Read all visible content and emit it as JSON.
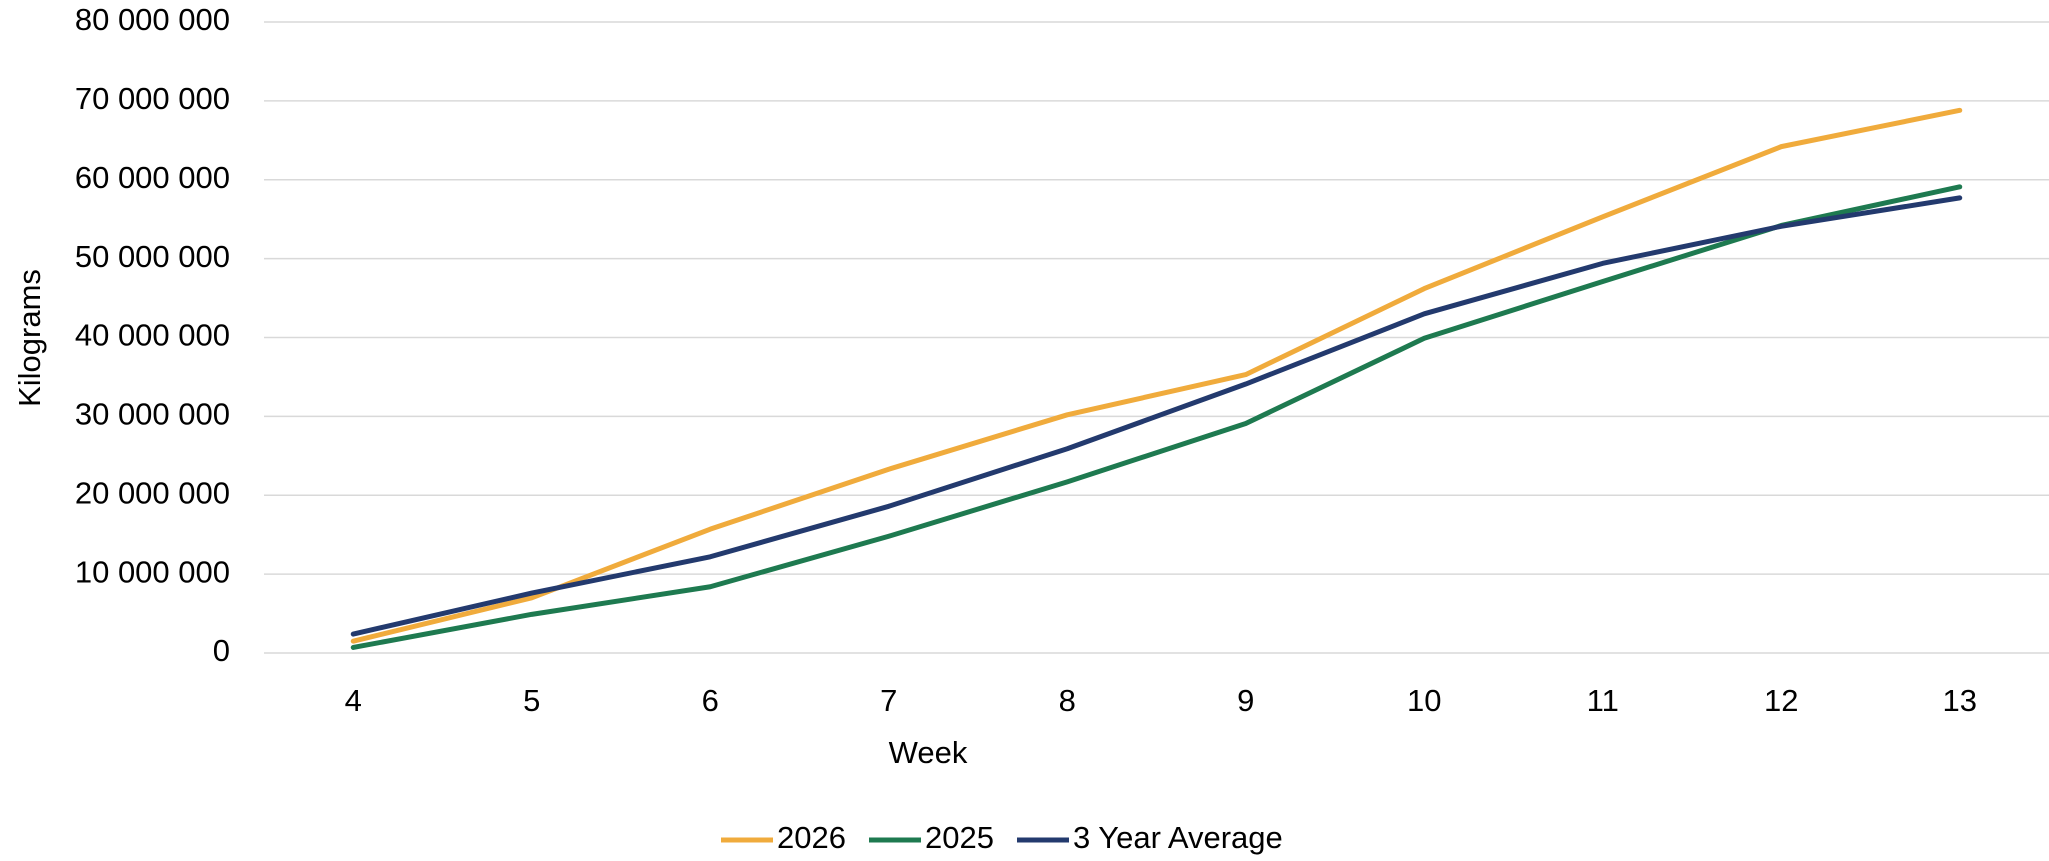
{
  "chart_data": {
    "type": "line",
    "x_label": "Week",
    "y_label": "Kilograms",
    "categories": [
      "4",
      "5",
      "6",
      "7",
      "8",
      "9",
      "10",
      "11",
      "12",
      "13"
    ],
    "series": [
      {
        "name": "2026",
        "color": "#f0ab3c",
        "values": [
          1500000,
          7000000,
          15700000,
          23300000,
          30200000,
          35300000,
          46200000,
          55300000,
          64200000,
          68800000
        ]
      },
      {
        "name": "2025",
        "color": "#1e7a50",
        "values": [
          700000,
          4900000,
          8400000,
          14800000,
          21700000,
          29100000,
          39900000,
          47100000,
          54200000,
          59100000
        ]
      },
      {
        "name": "3 Year Average",
        "color": "#233a6e",
        "values": [
          2400000,
          7600000,
          12200000,
          18600000,
          25900000,
          34100000,
          43000000,
          49400000,
          54100000,
          57700000
        ]
      }
    ],
    "ylim": [
      0,
      80000000
    ],
    "yticks": [
      0,
      {
        "value": 10000000,
        "label": "10 000 000"
      },
      {
        "value": 20000000,
        "label": "20 000 000"
      },
      {
        "value": 30000000,
        "label": "30 000 000"
      },
      {
        "value": 40000000,
        "label": "40 000 000"
      },
      {
        "value": 50000000,
        "label": "50 000 000"
      },
      {
        "value": 60000000,
        "label": "60 000 000"
      },
      {
        "value": 70000000,
        "label": "70 000 000"
      },
      {
        "value": 80000000,
        "label": "80 000 000"
      }
    ],
    "grid": true,
    "legend": "bottom"
  }
}
